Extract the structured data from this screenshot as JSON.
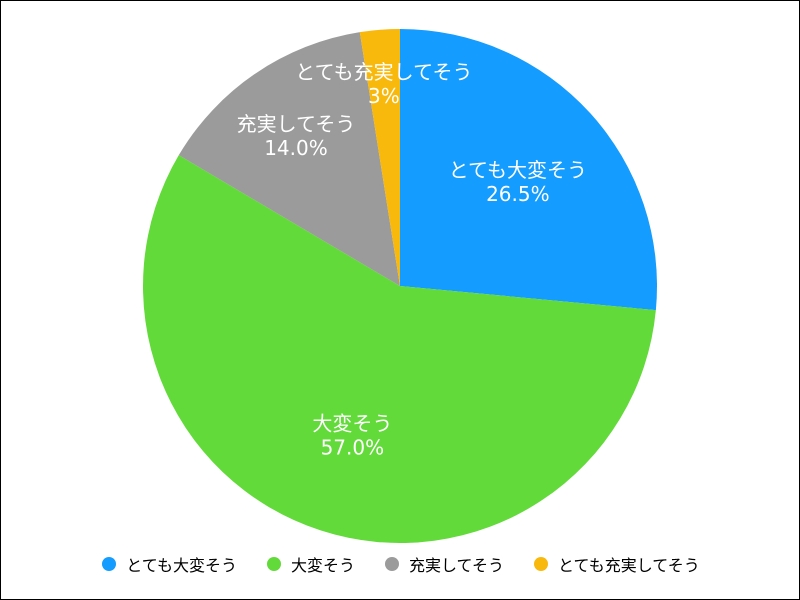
{
  "chart_data": {
    "type": "pie",
    "start_angle_deg": -90,
    "direction": "clockwise",
    "slices": [
      {
        "label": "とても大変そう",
        "value": 26.5,
        "value_label": "26.5%",
        "color": "#149cff"
      },
      {
        "label": "大変そう",
        "value": 57.0,
        "value_label": "57.0%",
        "color": "#62da3a"
      },
      {
        "label": "充実してそう",
        "value": 14.0,
        "value_label": "14.0%",
        "color": "#9b9b9b"
      },
      {
        "label": "とても充実してそう",
        "value": 2.5,
        "value_label": "3%",
        "color": "#f9b80c"
      }
    ],
    "legend_position": "bottom"
  }
}
